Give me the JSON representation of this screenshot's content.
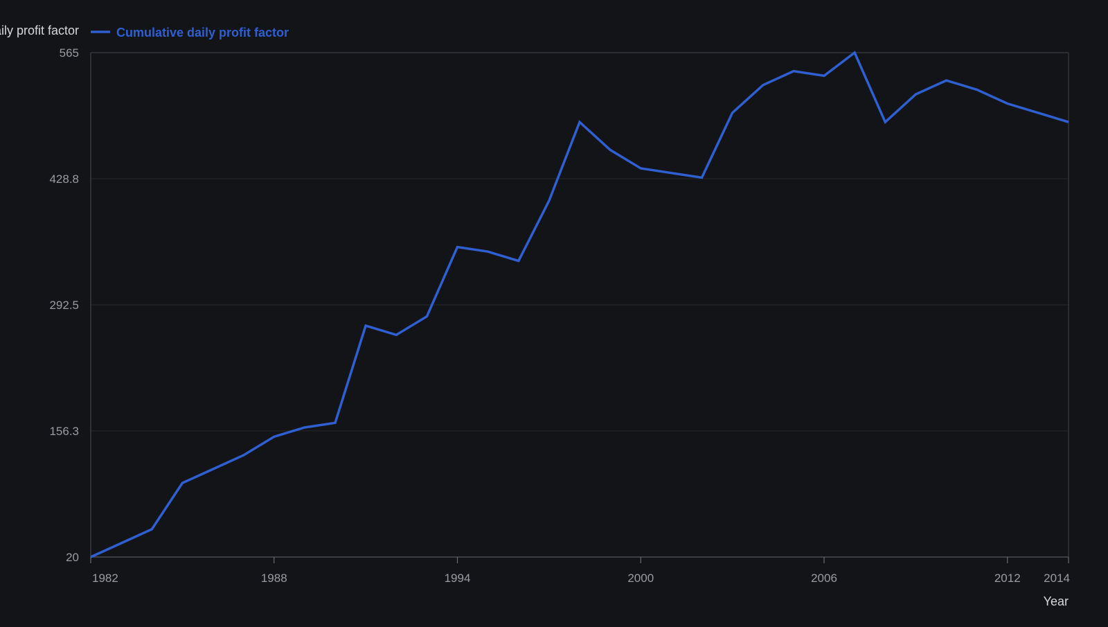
{
  "chart_data": {
    "type": "line",
    "ylabel": "Cumulative daily profit factor",
    "xlabel": "Year",
    "legend": {
      "placement": "top-left",
      "entries": [
        "Cumulative daily profit factor"
      ]
    },
    "y_ticks": [
      "20",
      "156.3",
      "292.5",
      "428.8",
      "565"
    ],
    "x_ticks": [
      "1982",
      "1988",
      "1994",
      "2000",
      "2006",
      "2012",
      "2014"
    ],
    "ylim": [
      20,
      565
    ],
    "xlim": [
      1982,
      2014
    ],
    "grid": "horizontal",
    "series": [
      {
        "name": "Cumulative daily profit factor",
        "color": "#2f5fd0",
        "x": [
          1982,
          1983,
          1984,
          1985,
          1986,
          1987,
          1988,
          1989,
          1990,
          1991,
          1992,
          1993,
          1994,
          1995,
          1996,
          1997,
          1998,
          1999,
          2000,
          2001,
          2002,
          2003,
          2004,
          2005,
          2006,
          2007,
          2008,
          2009,
          2010,
          2011,
          2012,
          2013,
          2014
        ],
        "values": [
          20,
          35,
          50,
          100,
          115,
          130,
          150,
          160,
          165,
          270,
          260,
          280,
          355,
          350,
          340,
          405,
          490,
          460,
          440,
          435,
          430,
          500,
          530,
          545,
          540,
          565,
          490,
          520,
          535,
          525,
          510,
          500,
          490
        ]
      }
    ]
  }
}
